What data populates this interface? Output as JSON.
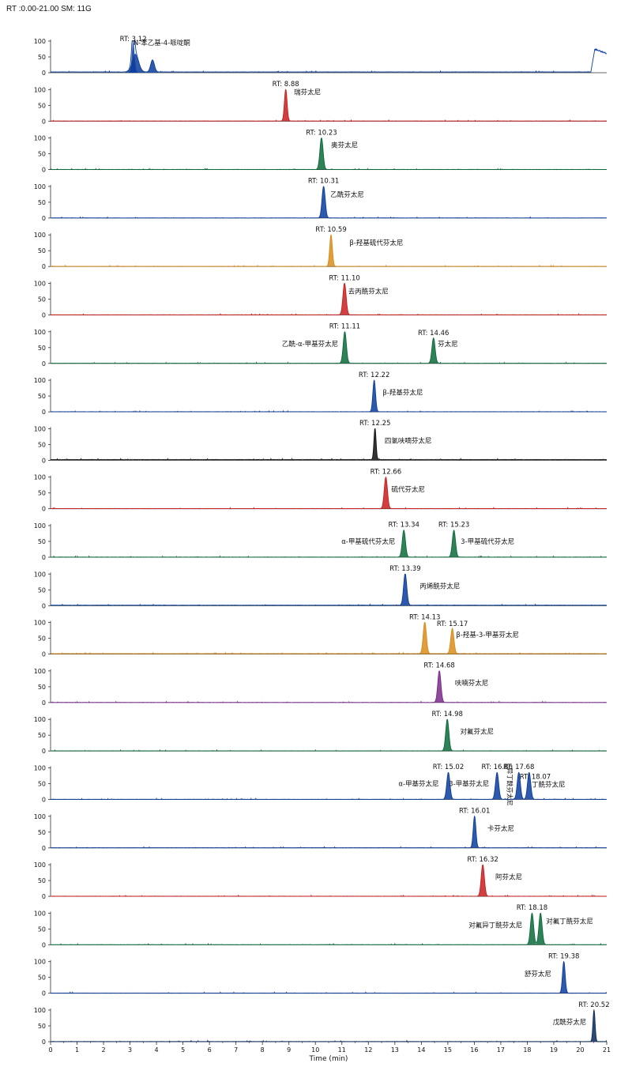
{
  "header": "RT :0.00-21.00 SM: 11G",
  "chart_data": {
    "type": "line",
    "xlabel": "Time (min)",
    "xlim": [
      0,
      21
    ],
    "xticks": [
      0,
      1,
      2,
      3,
      4,
      5,
      6,
      7,
      8,
      9,
      10,
      11,
      12,
      13,
      14,
      15,
      16,
      17,
      18,
      19,
      20,
      21
    ],
    "ylim": [
      0,
      100
    ],
    "yticks": [
      0,
      50,
      100
    ],
    "panels": [
      {
        "color": "#0b3d9c",
        "baseline": 2,
        "peaks": [
          {
            "rt": 3.12,
            "h": 97,
            "w": 0.05
          },
          {
            "rt": 3.2,
            "h": 58,
            "w": 0.12
          },
          {
            "rt": 3.85,
            "h": 38,
            "w": 0.07
          }
        ],
        "labels": [
          {
            "text": "RT: 3.12",
            "x": 3.12,
            "y": 108
          },
          {
            "text": "N-苯乙基-4-哌啶酮",
            "x": 4.2,
            "y": 95
          }
        ],
        "tail": {
          "start": 20.4,
          "peak": 20.55,
          "peakH": 72
        }
      },
      {
        "color": "#c81e1e",
        "baseline": 0,
        "peaks": [
          {
            "rt": 8.88,
            "h": 100,
            "w": 0.05
          }
        ],
        "labels": [
          {
            "text": "RT: 8.88",
            "x": 8.88,
            "y": 118
          },
          {
            "text": "瑞芬太尼",
            "x": 9.7,
            "y": 92
          }
        ]
      },
      {
        "color": "#0b6b3a",
        "baseline": 0,
        "peaks": [
          {
            "rt": 10.23,
            "h": 100,
            "w": 0.06
          }
        ],
        "labels": [
          {
            "text": "RT: 10.23",
            "x": 10.23,
            "y": 118
          },
          {
            "text": "奥芬太尼",
            "x": 11.1,
            "y": 78
          }
        ]
      },
      {
        "color": "#0b3d9c",
        "baseline": 0,
        "peaks": [
          {
            "rt": 10.31,
            "h": 100,
            "w": 0.06
          }
        ],
        "labels": [
          {
            "text": "RT: 10.31",
            "x": 10.31,
            "y": 118
          },
          {
            "text": "乙酰芬太尼",
            "x": 11.2,
            "y": 75
          }
        ]
      },
      {
        "color": "#d98c1a",
        "baseline": 0,
        "peaks": [
          {
            "rt": 10.59,
            "h": 100,
            "w": 0.05
          }
        ],
        "labels": [
          {
            "text": "RT: 10.59",
            "x": 10.59,
            "y": 118
          },
          {
            "text": "β-羟基硫代芬太尼",
            "x": 12.3,
            "y": 75
          }
        ]
      },
      {
        "color": "#c81e1e",
        "baseline": 0,
        "peaks": [
          {
            "rt": 11.1,
            "h": 100,
            "w": 0.06
          }
        ],
        "labels": [
          {
            "text": "RT: 11.10",
            "x": 11.1,
            "y": 118
          },
          {
            "text": "去丙酰芬太尼",
            "x": 12.0,
            "y": 75
          }
        ]
      },
      {
        "color": "#0b6b3a",
        "baseline": 0,
        "peaks": [
          {
            "rt": 11.11,
            "h": 100,
            "w": 0.06
          },
          {
            "rt": 14.46,
            "h": 80,
            "w": 0.06
          }
        ],
        "labels": [
          {
            "text": "RT: 11.11",
            "x": 11.11,
            "y": 118
          },
          {
            "text": "乙酰-α-甲基芬太尼",
            "x": 9.8,
            "y": 62
          },
          {
            "text": "RT: 14.46",
            "x": 14.46,
            "y": 97
          },
          {
            "text": "芬太尼",
            "x": 15.0,
            "y": 62
          }
        ]
      },
      {
        "color": "#0b3d9c",
        "baseline": 0,
        "peaks": [
          {
            "rt": 12.22,
            "h": 100,
            "w": 0.05
          }
        ],
        "labels": [
          {
            "text": "RT: 12.22",
            "x": 12.22,
            "y": 118
          },
          {
            "text": "β-羟基芬太尼",
            "x": 13.3,
            "y": 62
          }
        ]
      },
      {
        "color": "#111111",
        "baseline": 2,
        "peaks": [
          {
            "rt": 12.25,
            "h": 100,
            "w": 0.04
          }
        ],
        "labels": [
          {
            "text": "RT: 12.25",
            "x": 12.25,
            "y": 118
          },
          {
            "text": "四氢呋喃芬太尼",
            "x": 13.5,
            "y": 62
          }
        ]
      },
      {
        "color": "#c81e1e",
        "baseline": 0,
        "peaks": [
          {
            "rt": 12.66,
            "h": 100,
            "w": 0.06
          }
        ],
        "labels": [
          {
            "text": "RT: 12.66",
            "x": 12.66,
            "y": 118
          },
          {
            "text": "硫代芬太尼",
            "x": 13.5,
            "y": 62
          }
        ]
      },
      {
        "color": "#0b6b3a",
        "baseline": 0,
        "peaks": [
          {
            "rt": 13.34,
            "h": 85,
            "w": 0.06
          },
          {
            "rt": 15.23,
            "h": 85,
            "w": 0.06
          }
        ],
        "labels": [
          {
            "text": "RT: 13.34",
            "x": 13.34,
            "y": 104
          },
          {
            "text": "α-甲基硫代芬太尼",
            "x": 12.0,
            "y": 50
          },
          {
            "text": "RT: 15.23",
            "x": 15.23,
            "y": 104
          },
          {
            "text": "3-甲基硫代芬太尼",
            "x": 16.5,
            "y": 50
          }
        ]
      },
      {
        "color": "#0b3d9c",
        "baseline": 1,
        "peaks": [
          {
            "rt": 13.39,
            "h": 100,
            "w": 0.06
          }
        ],
        "labels": [
          {
            "text": "RT: 13.39",
            "x": 13.39,
            "y": 118
          },
          {
            "text": "丙烯酰芬太尼",
            "x": 14.7,
            "y": 62
          }
        ]
      },
      {
        "color": "#d98c1a",
        "baseline": 1,
        "peaks": [
          {
            "rt": 14.13,
            "h": 100,
            "w": 0.06
          },
          {
            "rt": 15.17,
            "h": 80,
            "w": 0.06
          }
        ],
        "labels": [
          {
            "text": "RT: 14.13",
            "x": 14.13,
            "y": 118
          },
          {
            "text": "RT: 15.17",
            "x": 15.17,
            "y": 97
          },
          {
            "text": "β-羟基-3-甲基芬太尼",
            "x": 16.5,
            "y": 62
          }
        ]
      },
      {
        "color": "#7a2a8a",
        "baseline": 0,
        "peaks": [
          {
            "rt": 14.68,
            "h": 100,
            "w": 0.06
          }
        ],
        "labels": [
          {
            "text": "RT: 14.68",
            "x": 14.68,
            "y": 118
          },
          {
            "text": "呋喃芬太尼",
            "x": 15.9,
            "y": 62
          }
        ]
      },
      {
        "color": "#0b6b3a",
        "baseline": 0,
        "peaks": [
          {
            "rt": 14.98,
            "h": 100,
            "w": 0.06
          }
        ],
        "labels": [
          {
            "text": "RT: 14.98",
            "x": 14.98,
            "y": 118
          },
          {
            "text": "对氟芬太尼",
            "x": 16.1,
            "y": 62
          }
        ]
      },
      {
        "color": "#0b3d9c",
        "baseline": 0,
        "peaks": [
          {
            "rt": 15.02,
            "h": 85,
            "w": 0.06
          },
          {
            "rt": 16.86,
            "h": 85,
            "w": 0.06
          },
          {
            "rt": 17.68,
            "h": 85,
            "w": 0.06
          },
          {
            "rt": 18.07,
            "h": 85,
            "w": 0.06
          }
        ],
        "labels": [
          {
            "text": "RT: 15.02",
            "x": 15.02,
            "y": 104
          },
          {
            "text": "α-甲基芬太尼",
            "x": 13.9,
            "y": 50
          },
          {
            "text": "3-甲基芬太尼",
            "x": 15.8,
            "y": 50
          },
          {
            "text": "RT: 16.86",
            "x": 16.86,
            "y": 104
          },
          {
            "text": "RT: 17.68",
            "x": 17.68,
            "y": 104
          },
          {
            "text": "RT: 18.07",
            "x": 18.3,
            "y": 72
          },
          {
            "text": "丁酰芬太尼",
            "x": 18.8,
            "y": 48
          }
        ],
        "vertical_label": {
          "text": "异丁酰芬太尼",
          "x": 17.25,
          "y": 100
        }
      },
      {
        "color": "#0b3d9c",
        "baseline": 0,
        "peaks": [
          {
            "rt": 16.01,
            "h": 100,
            "w": 0.05
          }
        ],
        "labels": [
          {
            "text": "RT: 16.01",
            "x": 16.01,
            "y": 118
          },
          {
            "text": "卡芬太尼",
            "x": 17.0,
            "y": 62
          }
        ]
      },
      {
        "color": "#c81e1e",
        "baseline": 0,
        "peaks": [
          {
            "rt": 16.32,
            "h": 100,
            "w": 0.06
          }
        ],
        "labels": [
          {
            "text": "RT: 16.32",
            "x": 16.32,
            "y": 118
          },
          {
            "text": "阿芬太尼",
            "x": 17.3,
            "y": 62
          }
        ]
      },
      {
        "color": "#0b6b3a",
        "baseline": 0,
        "peaks": [
          {
            "rt": 18.18,
            "h": 100,
            "w": 0.06
          },
          {
            "rt": 18.5,
            "h": 100,
            "w": 0.06
          }
        ],
        "labels": [
          {
            "text": "RT: 18.18",
            "x": 18.18,
            "y": 118
          },
          {
            "text": "对氟异丁酰芬太尼",
            "x": 16.8,
            "y": 62
          },
          {
            "text": "对氟丁酰芬太尼",
            "x": 19.6,
            "y": 75
          }
        ]
      },
      {
        "color": "#0b3d9c",
        "baseline": 0,
        "peaks": [
          {
            "rt": 19.38,
            "h": 100,
            "w": 0.05
          }
        ],
        "labels": [
          {
            "text": "RT: 19.38",
            "x": 19.38,
            "y": 118
          },
          {
            "text": "舒芬太尼",
            "x": 18.4,
            "y": 62
          }
        ]
      },
      {
        "color": "#0b2a5c",
        "baseline": 0,
        "peaks": [
          {
            "rt": 20.52,
            "h": 100,
            "w": 0.04
          }
        ],
        "labels": [
          {
            "text": "RT: 20.52",
            "x": 20.52,
            "y": 118
          },
          {
            "text": "戊酰芬太尼",
            "x": 19.6,
            "y": 62
          }
        ]
      }
    ]
  }
}
